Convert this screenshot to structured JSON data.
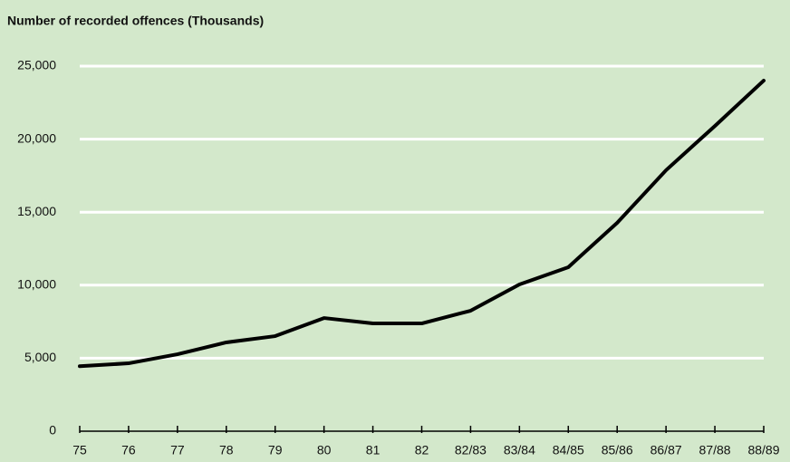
{
  "chart_data": {
    "type": "line",
    "title": "Number of recorded offences (Thousands)",
    "categories": [
      "75",
      "76",
      "77",
      "78",
      "79",
      "80",
      "81",
      "82",
      "82/83",
      "83/84",
      "84/85",
      "85/86",
      "86/87",
      "87/88",
      "88/89"
    ],
    "series": [
      {
        "name": "Recorded offences",
        "color": "#000000",
        "values": [
          4450,
          4650,
          5270,
          6080,
          6510,
          7750,
          7380,
          7380,
          8250,
          10050,
          11230,
          14270,
          17870,
          20900,
          24010
        ]
      }
    ],
    "ylim": [
      0,
      25000
    ],
    "yticks": [
      0,
      {
        "value": 5000,
        "label": "5,000"
      },
      {
        "value": 10000,
        "label": "10,000"
      },
      {
        "value": 15000,
        "label": "15,000"
      },
      {
        "value": 20000,
        "label": "20,000"
      },
      {
        "value": 25000,
        "label": "25,000"
      }
    ],
    "grid": true,
    "grid_color": "#ffffff"
  }
}
